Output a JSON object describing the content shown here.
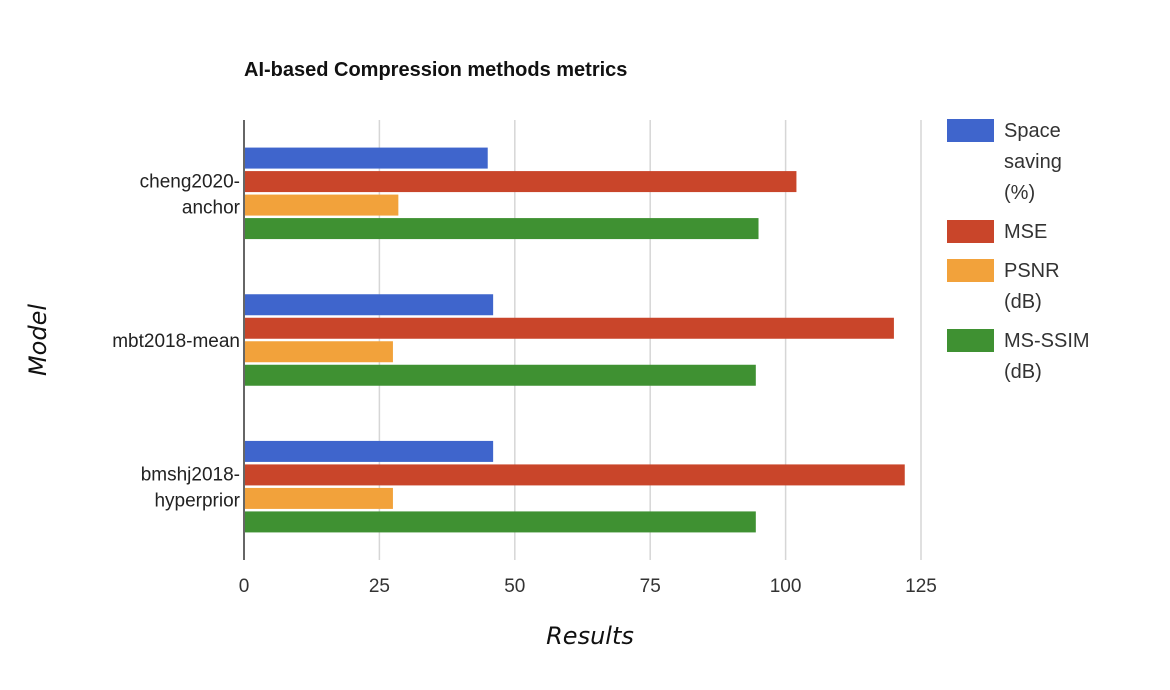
{
  "chart_data": {
    "type": "bar",
    "orientation": "horizontal",
    "title": "AI-based Compression methods metrics",
    "xlabel": "Results",
    "ylabel": "Model",
    "categories": [
      [
        "cheng2020-",
        "anchor"
      ],
      [
        "mbt2018-mean"
      ],
      [
        "bmshj2018-",
        "hyperprior"
      ]
    ],
    "series": [
      {
        "name": [
          "Space",
          "saving",
          "(%)"
        ],
        "color": "#3f65cc",
        "values": [
          45,
          46,
          46
        ]
      },
      {
        "name": [
          "MSE"
        ],
        "color": "#c9452a",
        "values": [
          102,
          120,
          122
        ]
      },
      {
        "name": [
          "PSNR",
          "(dB)"
        ],
        "color": "#f2a23b",
        "values": [
          28.5,
          27.5,
          27.5
        ]
      },
      {
        "name": [
          "MS-SSIM",
          "(dB)"
        ],
        "color": "#3f9132",
        "values": [
          95,
          94.5,
          94.5
        ]
      }
    ],
    "xlim": [
      0,
      125
    ],
    "xticks": [
      "0",
      "25",
      "50",
      "75",
      "100",
      "125"
    ],
    "grid": true,
    "legend_position": "right"
  }
}
